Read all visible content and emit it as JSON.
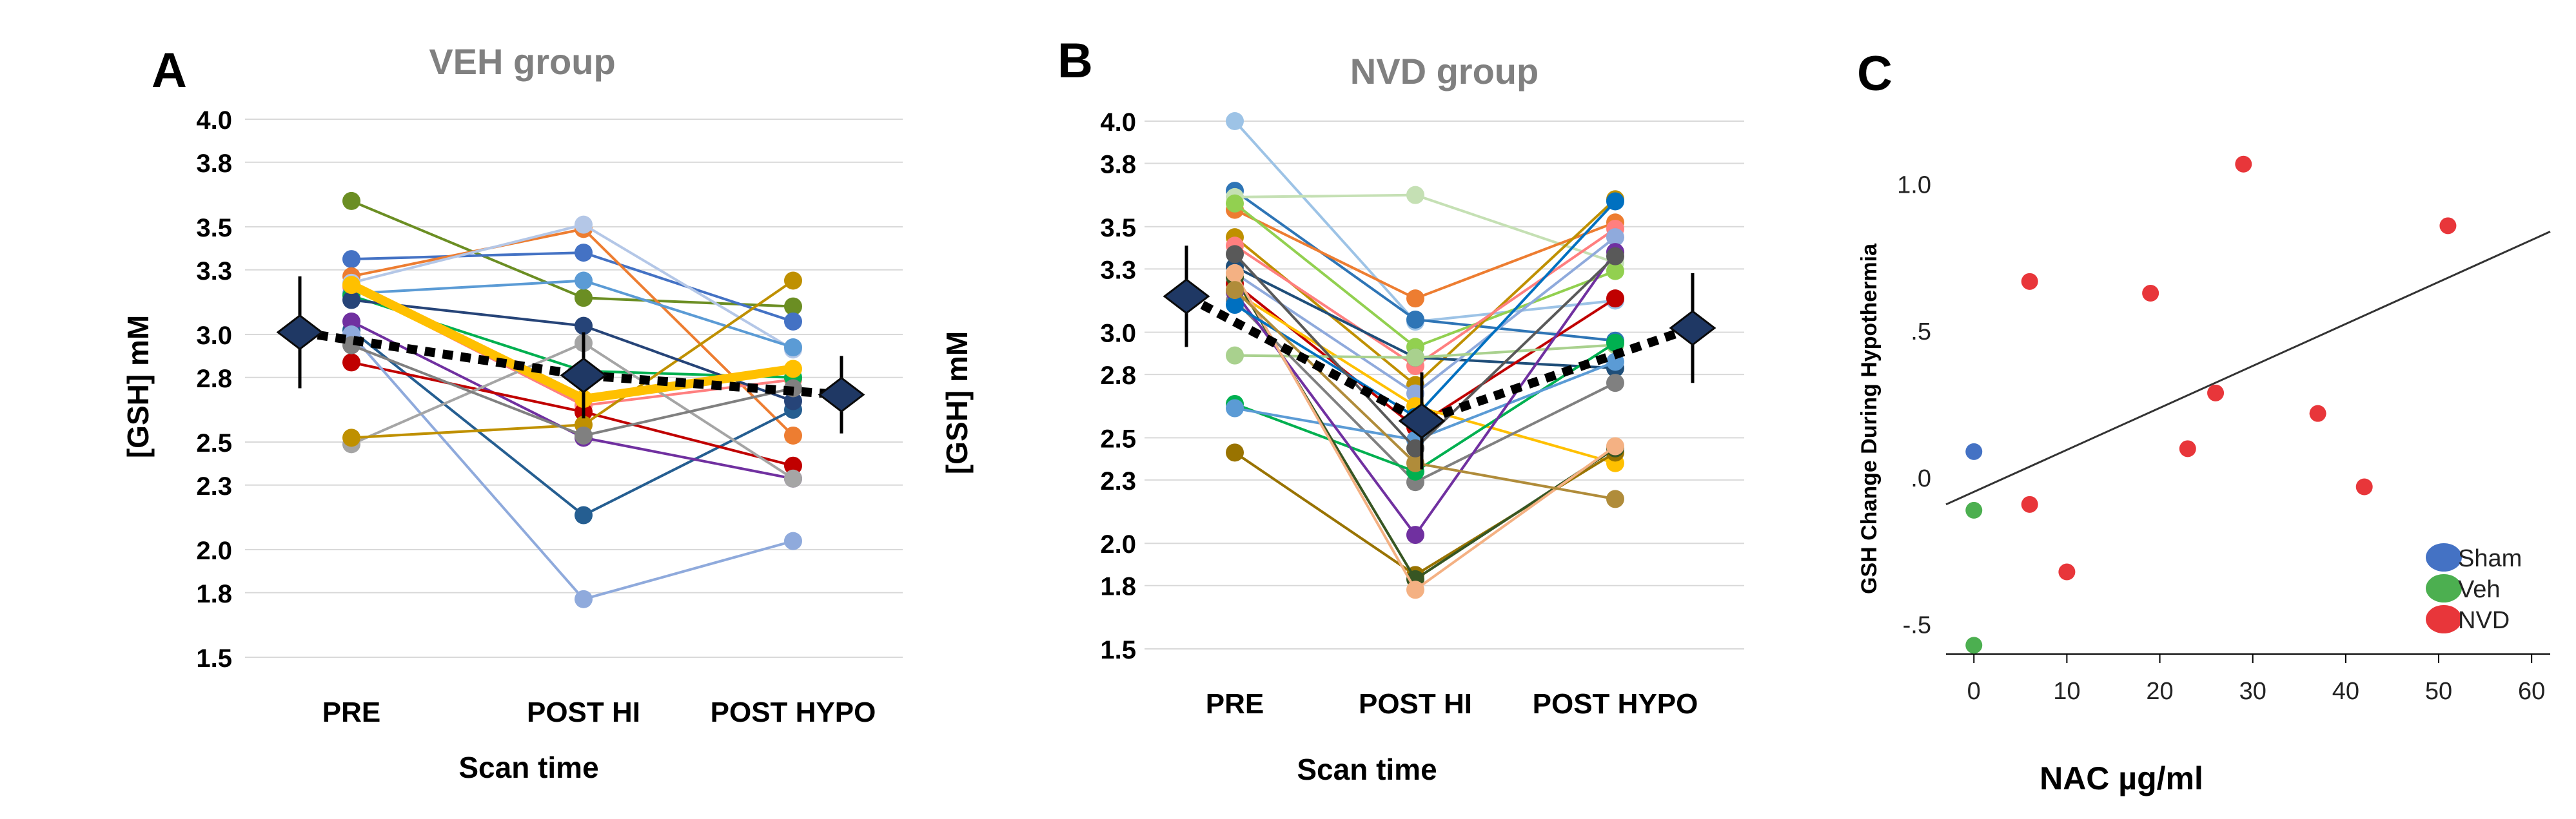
{
  "chart_data": [
    {
      "panel": "A",
      "type": "line",
      "title": "VEH group",
      "xlabel": "Scan time",
      "ylabel": "[GSH] mM",
      "categories": [
        "PRE",
        "POST HI",
        "POST HYPO"
      ],
      "yticks": [
        "4.0",
        "3.8",
        "3.5",
        "3.3",
        "3.0",
        "2.8",
        "2.5",
        "2.3",
        "2.0",
        "1.8",
        "1.5"
      ],
      "ylim": [
        1.5,
        4.0
      ],
      "grid": true,
      "series": [
        {
          "name": "s1",
          "color": "#6b8e23",
          "values": [
            3.62,
            3.17,
            3.13
          ]
        },
        {
          "name": "s2",
          "color": "#4472c4",
          "values": [
            3.35,
            3.38,
            3.06
          ]
        },
        {
          "name": "s3",
          "color": "#ed7d31",
          "values": [
            3.27,
            3.49,
            2.53
          ]
        },
        {
          "name": "s4",
          "color": "#b4c7e7",
          "values": [
            3.24,
            3.51,
            2.93
          ]
        },
        {
          "name": "s5",
          "color": "#ff7f7f",
          "values": [
            3.22,
            2.67,
            2.79
          ]
        },
        {
          "name": "s6",
          "color": "#5b9bd5",
          "values": [
            3.19,
            3.25,
            2.94
          ]
        },
        {
          "name": "s7",
          "color": "#00b050",
          "values": [
            3.18,
            2.83,
            2.8
          ]
        },
        {
          "name": "s8",
          "color": "#255e91",
          "values": [
            3.02,
            2.16,
            2.65
          ]
        },
        {
          "name": "s9",
          "color": "#7030a0",
          "values": [
            3.06,
            2.52,
            2.33
          ]
        },
        {
          "name": "s10",
          "color": "#c00000",
          "values": [
            2.87,
            2.64,
            2.39
          ]
        },
        {
          "name": "s11",
          "color": "#8faadc",
          "values": [
            3.0,
            1.77,
            2.04
          ]
        },
        {
          "name": "s12",
          "color": "#a5a5a5",
          "values": [
            2.49,
            2.96,
            2.33
          ]
        },
        {
          "name": "s13",
          "color": "#bf9000",
          "values": [
            2.52,
            2.58,
            3.25
          ]
        },
        {
          "name": "s14",
          "color": "#264478",
          "values": [
            3.16,
            3.04,
            2.69
          ]
        },
        {
          "name": "s15",
          "color": "#ffc000",
          "values": [
            3.23,
            2.7,
            2.84
          ]
        },
        {
          "name": "s16",
          "color": "#808080",
          "values": [
            2.95,
            2.53,
            2.75
          ]
        }
      ],
      "mean": {
        "values": [
          3.01,
          2.81,
          2.72
        ],
        "errors": [
          0.26,
          0.2,
          0.18
        ],
        "label_color": "#000000"
      }
    },
    {
      "panel": "B",
      "type": "line",
      "title": "NVD group",
      "xlabel": "Scan time",
      "ylabel": "[GSH] mM",
      "categories": [
        "PRE",
        "POST HI",
        "POST HYPO"
      ],
      "yticks": [
        "4.0",
        "3.8",
        "3.5",
        "3.3",
        "3.0",
        "2.8",
        "2.5",
        "2.3",
        "2.0",
        "1.8",
        "1.5"
      ],
      "ylim": [
        1.5,
        4.0
      ],
      "grid": true,
      "series": [
        {
          "name": "s1",
          "color": "#9dc3e6",
          "values": [
            4.0,
            3.05,
            3.15
          ]
        },
        {
          "name": "s2",
          "color": "#2e75b6",
          "values": [
            3.67,
            3.06,
            2.96
          ]
        },
        {
          "name": "s3",
          "color": "#c5e0b4",
          "values": [
            3.64,
            3.65,
            3.33
          ]
        },
        {
          "name": "s4",
          "color": "#ed7d31",
          "values": [
            3.58,
            3.16,
            3.52
          ]
        },
        {
          "name": "s5",
          "color": "#92d050",
          "values": [
            3.61,
            2.93,
            3.29
          ]
        },
        {
          "name": "s6",
          "color": "#bf9000",
          "values": [
            3.45,
            2.75,
            3.63
          ]
        },
        {
          "name": "s7",
          "color": "#ff7f7f",
          "values": [
            3.41,
            2.84,
            3.49
          ]
        },
        {
          "name": "s8",
          "color": "#1f4e79",
          "values": [
            3.31,
            2.88,
            2.83
          ]
        },
        {
          "name": "s9",
          "color": "#8faadc",
          "values": [
            3.28,
            2.71,
            3.45
          ]
        },
        {
          "name": "s10",
          "color": "#c00000",
          "values": [
            3.23,
            2.55,
            3.16
          ]
        },
        {
          "name": "s11",
          "color": "#ffc000",
          "values": [
            3.19,
            2.65,
            2.38
          ]
        },
        {
          "name": "s12",
          "color": "#a9d18e",
          "values": [
            2.89,
            2.88,
            2.94
          ]
        },
        {
          "name": "s13",
          "color": "#808080",
          "values": [
            3.15,
            2.29,
            2.76
          ]
        },
        {
          "name": "s14",
          "color": "#00b050",
          "values": [
            2.66,
            2.34,
            2.95
          ]
        },
        {
          "name": "s15",
          "color": "#5b9bd5",
          "values": [
            2.64,
            2.49,
            2.86
          ]
        },
        {
          "name": "s16",
          "color": "#997300",
          "values": [
            2.43,
            1.85,
            2.43
          ]
        },
        {
          "name": "s17",
          "color": "#375623",
          "values": [
            3.26,
            1.83,
            2.45
          ]
        },
        {
          "name": "s18",
          "color": "#7030a0",
          "values": [
            3.19,
            2.04,
            3.38
          ]
        },
        {
          "name": "s19",
          "color": "#f4b183",
          "values": [
            3.28,
            1.78,
            2.46
          ]
        },
        {
          "name": "s20",
          "color": "#0070c0",
          "values": [
            3.13,
            2.6,
            3.62
          ]
        },
        {
          "name": "s21",
          "color": "#b08c3a",
          "values": [
            3.2,
            2.38,
            2.21
          ]
        },
        {
          "name": "s22",
          "color": "#595959",
          "values": [
            3.37,
            2.45,
            3.36
          ]
        }
      ],
      "mean": {
        "values": [
          3.17,
          2.58,
          3.02
        ],
        "errors": [
          0.24,
          0.23,
          0.26
        ]
      }
    },
    {
      "panel": "C",
      "type": "scatter",
      "title": "",
      "xlabel": "NAC µg/ml",
      "ylabel": "GSH Change During Hypothermia",
      "xticks": [
        "0",
        "10",
        "20",
        "30",
        "40",
        "50",
        "60"
      ],
      "yticks": [
        "1.0",
        ".5",
        ".0",
        "-.5"
      ],
      "xlim": [
        -3,
        62
      ],
      "ylim": [
        -0.6,
        1.3
      ],
      "legend_position": "bottom-right",
      "series": [
        {
          "name": "Sham",
          "color": "#4472c4",
          "points": [
            [
              0,
              0.09
            ]
          ]
        },
        {
          "name": "Veh",
          "color": "#4caf50",
          "points": [
            [
              0,
              -0.11
            ],
            [
              0,
              -0.57
            ]
          ]
        },
        {
          "name": "NVD",
          "color": "#e8363a",
          "points": [
            [
              6,
              0.67
            ],
            [
              6,
              -0.09
            ],
            [
              10,
              -0.32
            ],
            [
              19,
              0.63
            ],
            [
              23,
              0.1
            ],
            [
              26,
              0.29
            ],
            [
              29,
              1.07
            ],
            [
              37,
              0.22
            ],
            [
              42,
              -0.03
            ],
            [
              51,
              0.86
            ]
          ]
        }
      ],
      "fit_line": {
        "x": [
          -3,
          62
        ],
        "y": [
          -0.09,
          0.84
        ]
      }
    }
  ]
}
